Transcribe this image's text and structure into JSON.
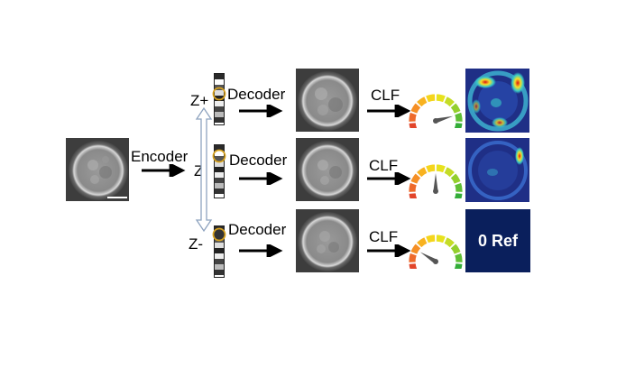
{
  "labels": {
    "encoder": "Encoder",
    "decoder": "Decoder",
    "clf": "CLF",
    "z_plus": "Z+",
    "z": "Z",
    "z_minus": "Z-",
    "ref": "0 Ref"
  },
  "colors": {
    "arrow": "#000000",
    "double_arrow_outline": "#8ea3bf",
    "ref_background": "#0a1f5c",
    "heatmap_base": "#1f2f86",
    "latent_highlight": "#d7a21e",
    "gauge_needle": "#555555"
  },
  "rows": [
    {
      "id": "z-plus",
      "gauge_level": 0.82
    },
    {
      "id": "z",
      "gauge_level": 0.5
    },
    {
      "id": "z-minus",
      "gauge_level": 0.25
    }
  ]
}
